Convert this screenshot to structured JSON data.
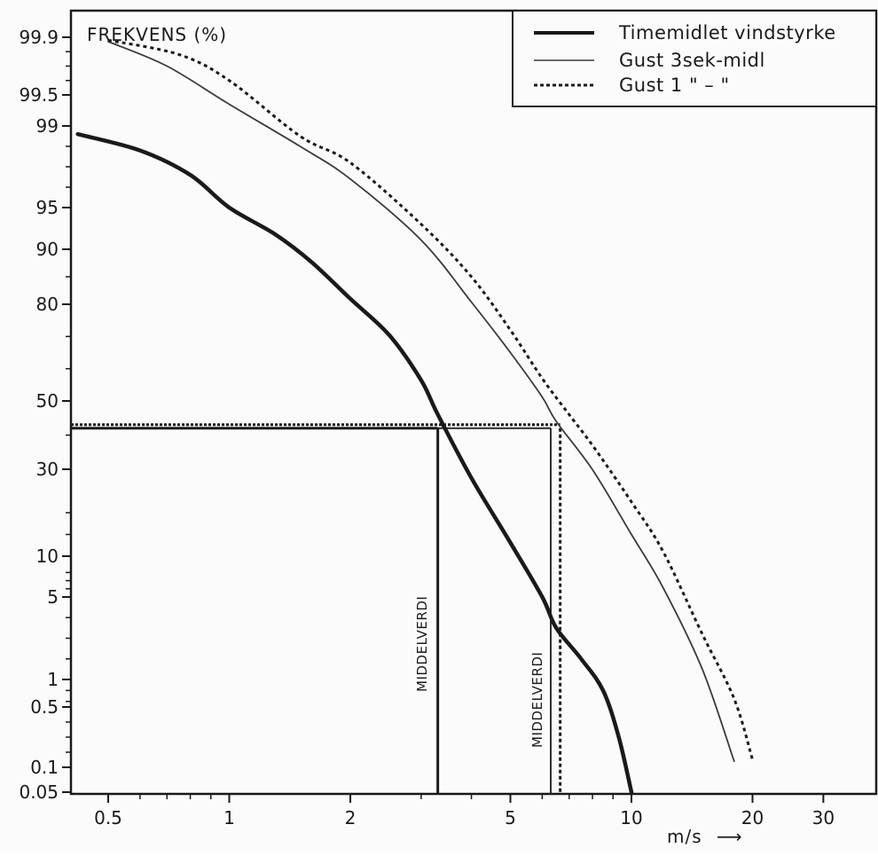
{
  "chart_data": {
    "type": "line",
    "ylabel": "FREKVENS (%)",
    "xlabel": "m/s",
    "xscale": "log",
    "yscale": "probability",
    "xlim": [
      0.42,
      40
    ],
    "ylim": [
      0.05,
      99.95
    ],
    "grid": false,
    "legend_position": "top-right",
    "xticks": [
      {
        "value": 0.5,
        "label": "0.5"
      },
      {
        "value": 1,
        "label": "1"
      },
      {
        "value": 2,
        "label": "2"
      },
      {
        "value": 5,
        "label": "5"
      },
      {
        "value": 10,
        "label": "10"
      },
      {
        "value": 20,
        "label": "20"
      },
      {
        "value": 30,
        "label": "30"
      }
    ],
    "yticks": [
      {
        "value": 99.9,
        "label": "99.9"
      },
      {
        "value": 99.5,
        "label": "99.5"
      },
      {
        "value": 99,
        "label": "99"
      },
      {
        "value": 95,
        "label": "95"
      },
      {
        "value": 90,
        "label": "90"
      },
      {
        "value": 80,
        "label": "80"
      },
      {
        "value": 50,
        "label": "50"
      },
      {
        "value": 30,
        "label": "30"
      },
      {
        "value": 10,
        "label": "10"
      },
      {
        "value": 5,
        "label": "5"
      },
      {
        "value": 1,
        "label": "1"
      },
      {
        "value": 0.5,
        "label": "0.5"
      },
      {
        "value": 0.1,
        "label": "0.1"
      },
      {
        "value": 0.05,
        "label": "0.05"
      }
    ],
    "series": [
      {
        "name": "Timemidlet vindstyrke",
        "style": "solid-thick",
        "color": "#1a1a1a",
        "points": [
          [
            0.42,
            98.6
          ],
          [
            0.6,
            97.8
          ],
          [
            0.8,
            96.6
          ],
          [
            1,
            95.0
          ],
          [
            1.3,
            91.8
          ],
          [
            1.6,
            87.7
          ],
          [
            2,
            81.0
          ],
          [
            2.5,
            70.4
          ],
          [
            3,
            56.4
          ],
          [
            3.3,
            46.0
          ],
          [
            4,
            28.0
          ],
          [
            5,
            13.1
          ],
          [
            6,
            5.0
          ],
          [
            6.5,
            3.5
          ],
          [
            7.5,
            2.0
          ],
          [
            8.5,
            0.8
          ],
          [
            9.3,
            0.3
          ],
          [
            10,
            0.05
          ]
        ]
      },
      {
        "name": "Gust 3sek-midl",
        "style": "solid-thin",
        "color": "#3a3a3a",
        "points": [
          [
            0.5,
            99.87
          ],
          [
            0.7,
            99.7
          ],
          [
            1,
            99.35
          ],
          [
            1.5,
            98.0
          ],
          [
            2,
            96.4
          ],
          [
            3,
            91.1
          ],
          [
            4,
            80.4
          ],
          [
            5,
            65.0
          ],
          [
            6,
            51.2
          ],
          [
            6.5,
            44.0
          ],
          [
            8,
            29.9
          ],
          [
            10,
            15.0
          ],
          [
            12,
            6.1
          ],
          [
            15,
            1.5
          ],
          [
            18,
            0.14
          ]
        ]
      },
      {
        "name": "Gust 1 \" – \"",
        "style": "dashed",
        "color": "#1a1a1a",
        "points": [
          [
            0.5,
            99.88
          ],
          [
            0.75,
            99.78
          ],
          [
            1,
            99.6
          ],
          [
            1.5,
            98.5
          ],
          [
            2,
            97.2
          ],
          [
            3,
            93.0
          ],
          [
            4,
            85.0
          ],
          [
            5,
            72.0
          ],
          [
            6,
            57.0
          ],
          [
            7,
            46.0
          ],
          [
            8,
            37.0
          ],
          [
            10,
            22.5
          ],
          [
            12,
            11.0
          ],
          [
            15,
            3.2
          ],
          [
            18,
            0.65
          ],
          [
            20,
            0.15
          ]
        ]
      }
    ],
    "reference_lines": {
      "level": 42,
      "markers": [
        {
          "x": 3.3,
          "label": "MIDDELVERDI",
          "style": "solid-thick"
        },
        {
          "x": 6.3,
          "label": "MIDDELVERDI",
          "style": "solid-thin"
        },
        {
          "x": 6.65,
          "label": "",
          "style": "dashed"
        }
      ]
    }
  },
  "legend": {
    "items": [
      {
        "label": "Timemidlet vindstyrke"
      },
      {
        "label": "Gust 3sek-midl"
      },
      {
        "label": "Gust 1 \" – \""
      }
    ]
  },
  "axis": {
    "ylabel": "FREKVENS (%)",
    "xunit": "m/s",
    "xunit_arrow": "⟶"
  },
  "annotations": {
    "marker_1": "MIDDELVERDI",
    "marker_2": "MIDDELVERDI"
  }
}
